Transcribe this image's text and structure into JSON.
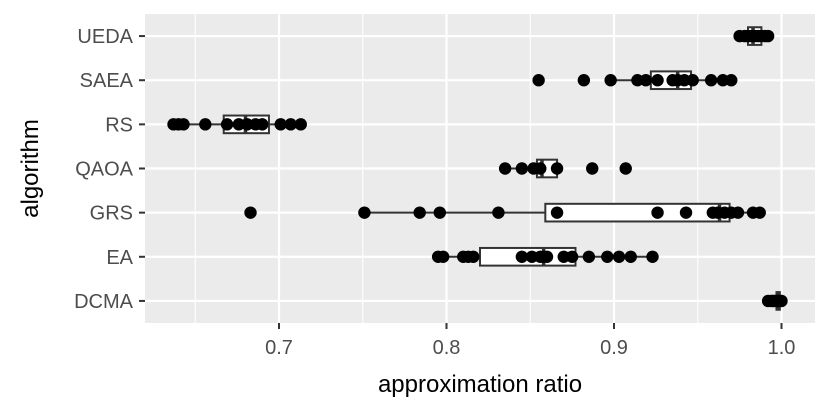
{
  "chart_data": {
    "type": "boxplot",
    "orientation": "horizontal",
    "xlabel": "approximation ratio",
    "ylabel": "algorithm",
    "xlim": [
      0.62,
      1.02
    ],
    "x_ticks": [
      0.7,
      0.8,
      0.9,
      1.0
    ],
    "x_tick_labels": [
      "0.7",
      "0.8",
      "0.9",
      "1.0"
    ],
    "categories": [
      "DCMA",
      "EA",
      "GRS",
      "QAOA",
      "RS",
      "SAEA",
      "UEDA"
    ],
    "panel_background": "#ebebeb",
    "grid": true,
    "series": [
      {
        "category": "DCMA",
        "box": {
          "q1": 0.997,
          "median": 0.998,
          "q3": 0.999,
          "whisker_low": 0.992,
          "whisker_high": 1.0
        },
        "points": [
          0.992,
          0.994,
          0.995,
          0.996,
          0.997,
          0.998,
          0.998,
          0.999,
          0.999,
          1.0
        ]
      },
      {
        "category": "EA",
        "box": {
          "q1": 0.82,
          "median": 0.858,
          "q3": 0.877,
          "whisker_low": 0.795,
          "whisker_high": 0.923
        },
        "points": [
          0.795,
          0.798,
          0.81,
          0.813,
          0.816,
          0.845,
          0.851,
          0.856,
          0.858,
          0.86,
          0.87,
          0.875,
          0.885,
          0.896,
          0.903,
          0.91,
          0.923
        ]
      },
      {
        "category": "GRS",
        "box": {
          "q1": 0.859,
          "median": 0.963,
          "q3": 0.969,
          "whisker_low": 0.751,
          "whisker_high": 0.987
        },
        "points": [
          0.683,
          0.751,
          0.784,
          0.796,
          0.831,
          0.866,
          0.926,
          0.943,
          0.959,
          0.962,
          0.966,
          0.97,
          0.974,
          0.983,
          0.987
        ]
      },
      {
        "category": "QAOA",
        "box": {
          "q1": 0.854,
          "median": 0.857,
          "q3": 0.866,
          "whisker_low": 0.835,
          "whisker_high": 0.866
        },
        "points": [
          0.835,
          0.845,
          0.852,
          0.856,
          0.866,
          0.887,
          0.907
        ]
      },
      {
        "category": "RS",
        "box": {
          "q1": 0.667,
          "median": 0.68,
          "q3": 0.694,
          "whisker_low": 0.637,
          "whisker_high": 0.713
        },
        "points": [
          0.637,
          0.64,
          0.643,
          0.656,
          0.669,
          0.676,
          0.681,
          0.686,
          0.69,
          0.701,
          0.707,
          0.713
        ]
      },
      {
        "category": "SAEA",
        "box": {
          "q1": 0.922,
          "median": 0.938,
          "q3": 0.946,
          "whisker_low": 0.898,
          "whisker_high": 0.97
        },
        "points": [
          0.855,
          0.882,
          0.898,
          0.914,
          0.919,
          0.926,
          0.935,
          0.938,
          0.942,
          0.947,
          0.958,
          0.965,
          0.97
        ]
      },
      {
        "category": "UEDA",
        "box": {
          "q1": 0.98,
          "median": 0.983,
          "q3": 0.988,
          "whisker_low": 0.975,
          "whisker_high": 0.992
        },
        "points": [
          0.975,
          0.978,
          0.98,
          0.982,
          0.984,
          0.986,
          0.988,
          0.99,
          0.992
        ]
      }
    ]
  }
}
